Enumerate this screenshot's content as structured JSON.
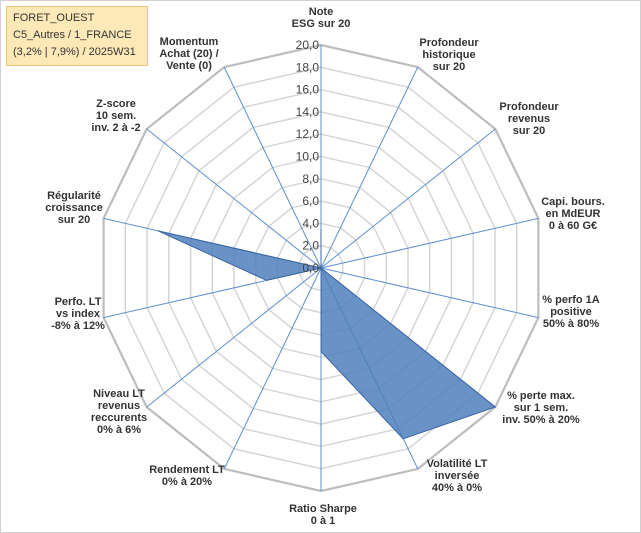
{
  "info_box": {
    "lines": [
      "FORET_OUEST",
      "C5_Autres / 1_FRANCE",
      "(3,2% | 7,9%) / 2025W31"
    ]
  },
  "chart_data": {
    "type": "radar",
    "rmin": 0,
    "rmax": 20,
    "ticks": [
      "0,0",
      "2,0",
      "4,0",
      "6,0",
      "8,0",
      "10,0",
      "12,0",
      "14,0",
      "16,0",
      "18,0",
      "20,0"
    ],
    "axes": [
      [
        "Note",
        "ESG sur 20"
      ],
      [
        "Profondeur",
        "historique",
        "sur 20"
      ],
      [
        "Profondeur",
        "revenus",
        "sur 20"
      ],
      [
        "Capi. bours.",
        "en MdEUR",
        "0 à 60 G€"
      ],
      [
        "% perfo 1A",
        "positive",
        "50% à 80%"
      ],
      [
        "% perte max.",
        "sur 1 sem.",
        "inv. 50% à 20%"
      ],
      [
        "Volatilité LT",
        "inversée",
        "40% à 0%"
      ],
      [
        "Ratio Sharpe",
        "0 à 1"
      ],
      [
        "Rendement LT",
        "0% à 20%"
      ],
      [
        "Niveau LT",
        "revenus",
        "reccurents",
        "0% à 6%"
      ],
      [
        "Perfo. LT",
        "vs index",
        "-8% à 12%"
      ],
      [
        "Régularité",
        "croissance",
        "sur 20"
      ],
      [
        "Z-score",
        "10 sem.",
        "inv. 2 à -2"
      ],
      [
        "Momentum",
        "Achat (20) /",
        "Vente (0)"
      ]
    ],
    "series": [
      {
        "values": [
          3.5,
          0,
          0,
          0,
          0,
          20,
          17,
          7.5,
          0,
          0,
          5,
          15,
          0,
          0
        ],
        "color": "#4f7fbc"
      }
    ],
    "grid": true
  }
}
